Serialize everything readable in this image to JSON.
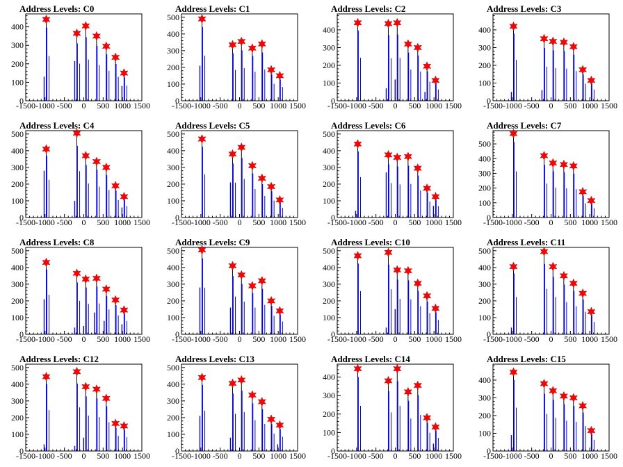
{
  "figure": {
    "colors": {
      "histogram": "#0000ff",
      "marker": "#ff0000",
      "frame": "#000000"
    },
    "xaxis": {
      "range": [
        -1500,
        1500
      ],
      "tick_labels": [
        "-1500",
        "-1000",
        "-500",
        "0",
        "500",
        "1000",
        "1500"
      ]
    }
  },
  "chart_data": [
    {
      "type": "bar",
      "title": "Address Levels: C0",
      "ylim": [
        0,
        470
      ],
      "yticks": [
        0,
        100,
        200,
        300,
        400
      ],
      "xlim": [
        -1500,
        1500
      ],
      "peaks": [
        {
          "x": -970,
          "y": 440,
          "pre": 130
        },
        {
          "x": -180,
          "y": 365,
          "pre": 215
        },
        {
          "x": 50,
          "y": 405,
          "pre": 0
        },
        {
          "x": 330,
          "y": 350,
          "pre": 0
        },
        {
          "x": 580,
          "y": 295,
          "pre": 0
        },
        {
          "x": 820,
          "y": 235,
          "pre": 0
        },
        {
          "x": 1040,
          "y": 150,
          "pre": 80
        }
      ]
    },
    {
      "type": "bar",
      "title": "Address Levels: C1",
      "ylim": [
        0,
        520
      ],
      "yticks": [
        0,
        100,
        200,
        300,
        400,
        500
      ],
      "xlim": [
        -1500,
        1500
      ],
      "peaks": [
        {
          "x": -970,
          "y": 490,
          "pre": 210
        },
        {
          "x": -180,
          "y": 335,
          "pre": 0
        },
        {
          "x": 50,
          "y": 355,
          "pre": 0
        },
        {
          "x": 330,
          "y": 315,
          "pre": 0
        },
        {
          "x": 580,
          "y": 340,
          "pre": 0
        },
        {
          "x": 820,
          "y": 185,
          "pre": 0
        },
        {
          "x": 1040,
          "y": 150,
          "pre": 0
        }
      ]
    },
    {
      "type": "bar",
      "title": "Address Levels: C2",
      "ylim": [
        0,
        490
      ],
      "yticks": [
        0,
        100,
        200,
        300,
        400
      ],
      "xlim": [
        -1500,
        1500
      ],
      "peaks": [
        {
          "x": -970,
          "y": 440,
          "pre": 0
        },
        {
          "x": -180,
          "y": 435,
          "pre": 70
        },
        {
          "x": 50,
          "y": 440,
          "pre": 120
        },
        {
          "x": 330,
          "y": 320,
          "pre": 0
        },
        {
          "x": 580,
          "y": 300,
          "pre": 0
        },
        {
          "x": 820,
          "y": 195,
          "pre": 50
        },
        {
          "x": 1040,
          "y": 115,
          "pre": 0
        }
      ]
    },
    {
      "type": "bar",
      "title": "Address Levels: C3",
      "ylim": [
        0,
        490
      ],
      "yticks": [
        0,
        100,
        200,
        300,
        400
      ],
      "xlim": [
        -1500,
        1500
      ],
      "peaks": [
        {
          "x": -970,
          "y": 420,
          "pre": 50
        },
        {
          "x": -180,
          "y": 350,
          "pre": 60
        },
        {
          "x": 50,
          "y": 335,
          "pre": 0
        },
        {
          "x": 330,
          "y": 330,
          "pre": 0
        },
        {
          "x": 580,
          "y": 305,
          "pre": 0
        },
        {
          "x": 820,
          "y": 175,
          "pre": 0
        },
        {
          "x": 1040,
          "y": 115,
          "pre": 0
        }
      ]
    },
    {
      "type": "bar",
      "title": "Address Levels: C4",
      "ylim": [
        0,
        520
      ],
      "yticks": [
        0,
        100,
        200,
        300,
        400,
        500
      ],
      "xlim": [
        -1500,
        1500
      ],
      "peaks": [
        {
          "x": -970,
          "y": 410,
          "pre": 280
        },
        {
          "x": -180,
          "y": 505,
          "pre": 100
        },
        {
          "x": 50,
          "y": 370,
          "pre": 0
        },
        {
          "x": 330,
          "y": 335,
          "pre": 0
        },
        {
          "x": 580,
          "y": 300,
          "pre": 0
        },
        {
          "x": 820,
          "y": 190,
          "pre": 0
        },
        {
          "x": 1040,
          "y": 125,
          "pre": 60
        }
      ]
    },
    {
      "type": "bar",
      "title": "Address Levels: C5",
      "ylim": [
        0,
        520
      ],
      "yticks": [
        0,
        100,
        200,
        300,
        400,
        500
      ],
      "xlim": [
        -1500,
        1500
      ],
      "peaks": [
        {
          "x": -970,
          "y": 470,
          "pre": 0
        },
        {
          "x": -180,
          "y": 380,
          "pre": 210
        },
        {
          "x": 50,
          "y": 420,
          "pre": 0
        },
        {
          "x": 330,
          "y": 310,
          "pre": 0
        },
        {
          "x": 580,
          "y": 235,
          "pre": 0
        },
        {
          "x": 820,
          "y": 185,
          "pre": 0
        },
        {
          "x": 1040,
          "y": 105,
          "pre": 0
        }
      ]
    },
    {
      "type": "bar",
      "title": "Address Levels: C6",
      "ylim": [
        0,
        520
      ],
      "yticks": [
        0,
        100,
        200,
        300,
        400,
        500
      ],
      "xlim": [
        -1500,
        1500
      ],
      "peaks": [
        {
          "x": -970,
          "y": 440,
          "pre": 40
        },
        {
          "x": -180,
          "y": 375,
          "pre": 270
        },
        {
          "x": 50,
          "y": 360,
          "pre": 0
        },
        {
          "x": 330,
          "y": 365,
          "pre": 0
        },
        {
          "x": 580,
          "y": 295,
          "pre": 0
        },
        {
          "x": 820,
          "y": 175,
          "pre": 0
        },
        {
          "x": 1040,
          "y": 125,
          "pre": 70
        }
      ]
    },
    {
      "type": "bar",
      "title": "Address Levels: C7",
      "ylim": [
        0,
        590
      ],
      "yticks": [
        0,
        100,
        200,
        300,
        400,
        500
      ],
      "xlim": [
        -1500,
        1500
      ],
      "peaks": [
        {
          "x": -970,
          "y": 570,
          "pre": 0
        },
        {
          "x": -180,
          "y": 420,
          "pre": 0
        },
        {
          "x": 50,
          "y": 370,
          "pre": 0
        },
        {
          "x": 330,
          "y": 360,
          "pre": 0
        },
        {
          "x": 580,
          "y": 350,
          "pre": 0
        },
        {
          "x": 820,
          "y": 175,
          "pre": 0
        },
        {
          "x": 1040,
          "y": 115,
          "pre": 0
        }
      ]
    },
    {
      "type": "bar",
      "title": "Address Levels: C8",
      "ylim": [
        0,
        520
      ],
      "yticks": [
        0,
        100,
        200,
        300,
        400,
        500
      ],
      "xlim": [
        -1500,
        1500
      ],
      "peaks": [
        {
          "x": -970,
          "y": 430,
          "pre": 210
        },
        {
          "x": -180,
          "y": 365,
          "pre": 40
        },
        {
          "x": 50,
          "y": 330,
          "pre": 50
        },
        {
          "x": 330,
          "y": 335,
          "pre": 130
        },
        {
          "x": 580,
          "y": 270,
          "pre": 80
        },
        {
          "x": 820,
          "y": 205,
          "pre": 0
        },
        {
          "x": 1040,
          "y": 145,
          "pre": 60
        }
      ]
    },
    {
      "type": "bar",
      "title": "Address Levels: C9",
      "ylim": [
        0,
        520
      ],
      "yticks": [
        0,
        100,
        200,
        300,
        400,
        500
      ],
      "xlim": [
        -1500,
        1500
      ],
      "peaks": [
        {
          "x": -970,
          "y": 505,
          "pre": 280
        },
        {
          "x": -180,
          "y": 410,
          "pre": 160
        },
        {
          "x": 50,
          "y": 355,
          "pre": 0
        },
        {
          "x": 330,
          "y": 290,
          "pre": 0
        },
        {
          "x": 580,
          "y": 320,
          "pre": 0
        },
        {
          "x": 820,
          "y": 200,
          "pre": 0
        },
        {
          "x": 1040,
          "y": 140,
          "pre": 0
        }
      ]
    },
    {
      "type": "bar",
      "title": "Address Levels: C10",
      "ylim": [
        0,
        520
      ],
      "yticks": [
        0,
        100,
        200,
        300,
        400,
        500
      ],
      "xlim": [
        -1500,
        1500
      ],
      "peaks": [
        {
          "x": -970,
          "y": 470,
          "pre": 0
        },
        {
          "x": -180,
          "y": 490,
          "pre": 40
        },
        {
          "x": 50,
          "y": 385,
          "pre": 150
        },
        {
          "x": 330,
          "y": 380,
          "pre": 0
        },
        {
          "x": 580,
          "y": 305,
          "pre": 0
        },
        {
          "x": 820,
          "y": 230,
          "pre": 0
        },
        {
          "x": 1040,
          "y": 155,
          "pre": 0
        }
      ]
    },
    {
      "type": "bar",
      "title": "Address Levels: C11",
      "ylim": [
        0,
        520
      ],
      "yticks": [
        0,
        100,
        200,
        300,
        400,
        500
      ],
      "xlim": [
        -1500,
        1500
      ],
      "peaks": [
        {
          "x": -970,
          "y": 405,
          "pre": 40
        },
        {
          "x": -180,
          "y": 495,
          "pre": 0
        },
        {
          "x": 50,
          "y": 405,
          "pre": 0
        },
        {
          "x": 330,
          "y": 350,
          "pre": 0
        },
        {
          "x": 580,
          "y": 305,
          "pre": 0
        },
        {
          "x": 820,
          "y": 245,
          "pre": 0
        },
        {
          "x": 1040,
          "y": 135,
          "pre": 0
        }
      ]
    },
    {
      "type": "bar",
      "title": "Address Levels: C12",
      "ylim": [
        0,
        520
      ],
      "yticks": [
        0,
        100,
        200,
        300,
        400,
        500
      ],
      "xlim": [
        -1500,
        1500
      ],
      "peaks": [
        {
          "x": -970,
          "y": 445,
          "pre": 40
        },
        {
          "x": -180,
          "y": 475,
          "pre": 30
        },
        {
          "x": 50,
          "y": 385,
          "pre": 80
        },
        {
          "x": 330,
          "y": 370,
          "pre": 0
        },
        {
          "x": 580,
          "y": 315,
          "pre": 0
        },
        {
          "x": 820,
          "y": 165,
          "pre": 0
        },
        {
          "x": 1040,
          "y": 150,
          "pre": 0
        }
      ]
    },
    {
      "type": "bar",
      "title": "Address Levels: C13",
      "ylim": [
        0,
        520
      ],
      "yticks": [
        0,
        100,
        200,
        300,
        400,
        500
      ],
      "xlim": [
        -1500,
        1500
      ],
      "peaks": [
        {
          "x": -970,
          "y": 440,
          "pre": 210
        },
        {
          "x": -180,
          "y": 405,
          "pre": 80
        },
        {
          "x": 50,
          "y": 425,
          "pre": 0
        },
        {
          "x": 330,
          "y": 335,
          "pre": 0
        },
        {
          "x": 580,
          "y": 295,
          "pre": 0
        },
        {
          "x": 820,
          "y": 190,
          "pre": 0
        },
        {
          "x": 1040,
          "y": 155,
          "pre": 40
        }
      ]
    },
    {
      "type": "bar",
      "title": "Address Levels: C14",
      "ylim": [
        0,
        470
      ],
      "yticks": [
        0,
        100,
        200,
        300,
        400
      ],
      "xlim": [
        -1500,
        1500
      ],
      "peaks": [
        {
          "x": -970,
          "y": 445,
          "pre": 0
        },
        {
          "x": -180,
          "y": 380,
          "pre": 0
        },
        {
          "x": 50,
          "y": 445,
          "pre": 0
        },
        {
          "x": 330,
          "y": 320,
          "pre": 0
        },
        {
          "x": 580,
          "y": 355,
          "pre": 0
        },
        {
          "x": 820,
          "y": 180,
          "pre": 0
        },
        {
          "x": 1040,
          "y": 130,
          "pre": 40
        }
      ]
    },
    {
      "type": "bar",
      "title": "Address Levels: C15",
      "ylim": [
        0,
        490
      ],
      "yticks": [
        0,
        100,
        200,
        300,
        400
      ],
      "xlim": [
        -1500,
        1500
      ],
      "peaks": [
        {
          "x": -970,
          "y": 445,
          "pre": 90
        },
        {
          "x": -180,
          "y": 380,
          "pre": 0
        },
        {
          "x": 50,
          "y": 340,
          "pre": 0
        },
        {
          "x": 330,
          "y": 310,
          "pre": 0
        },
        {
          "x": 580,
          "y": 300,
          "pre": 0
        },
        {
          "x": 820,
          "y": 255,
          "pre": 0
        },
        {
          "x": 1040,
          "y": 115,
          "pre": 0
        }
      ]
    }
  ]
}
